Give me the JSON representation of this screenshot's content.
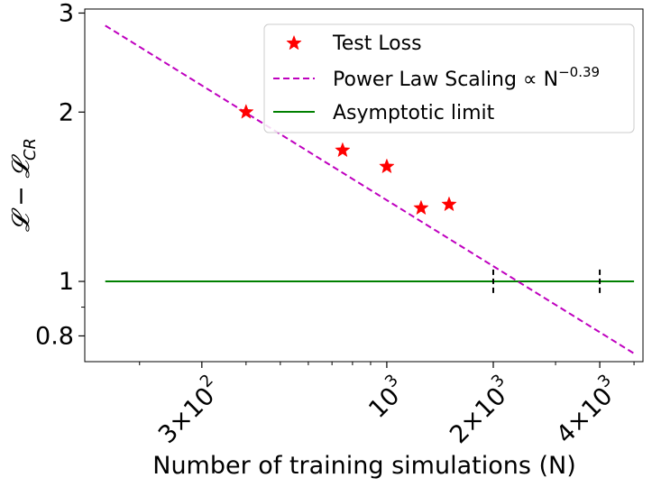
{
  "chart_data": {
    "type": "scatter",
    "title": "",
    "xlabel": "Number of training simulations (N)",
    "ylabel_parts": {
      "main": "𝓛 − 𝓛",
      "sub": "CR"
    },
    "x_scale": "log",
    "y_scale": "log",
    "xlim": [
      140,
      5300
    ],
    "ylim": [
      0.72,
      3.05
    ],
    "x_ticks": [
      {
        "value": 300,
        "label_main": "3×10",
        "label_exp": "2"
      },
      {
        "value": 1000,
        "label_main": "10",
        "label_exp": "3"
      },
      {
        "value": 2000,
        "label_main": "2×10",
        "label_exp": "3"
      },
      {
        "value": 4000,
        "label_main": "4×10",
        "label_exp": "3"
      }
    ],
    "y_ticks": [
      {
        "value": 0.8,
        "label": "0.8"
      },
      {
        "value": 1,
        "label": "1"
      },
      {
        "value": 2,
        "label": "2"
      },
      {
        "value": 3,
        "label": "3"
      }
    ],
    "series": [
      {
        "name": "Test Loss",
        "kind": "scatter",
        "marker": "star",
        "color": "#ff0000",
        "points": [
          {
            "x": 400,
            "y": 2.0
          },
          {
            "x": 750,
            "y": 1.71
          },
          {
            "x": 1000,
            "y": 1.6
          },
          {
            "x": 1250,
            "y": 1.35
          },
          {
            "x": 1500,
            "y": 1.37
          }
        ]
      },
      {
        "name": "Power Law Scaling",
        "legend_main": "Power Law Scaling  ∝ N",
        "legend_exp": "−0.39",
        "kind": "line",
        "style": "dashed",
        "color": "#bf00bf",
        "exponent": -0.39,
        "x_range": [
          160,
          5000
        ],
        "y_at_start": 2.85
      },
      {
        "name": "Asymptotic limit",
        "kind": "line",
        "style": "solid",
        "color": "#008000",
        "y": 1.0,
        "x_range": [
          160,
          5000
        ]
      }
    ],
    "vertical_markers": [
      {
        "x": 2000,
        "y_range": [
          0.95,
          1.05
        ],
        "style": "dashed",
        "color": "#000000"
      },
      {
        "x": 4000,
        "y_range": [
          0.95,
          1.05
        ],
        "style": "dashed",
        "color": "#000000"
      }
    ],
    "legend_position": "top-right"
  }
}
